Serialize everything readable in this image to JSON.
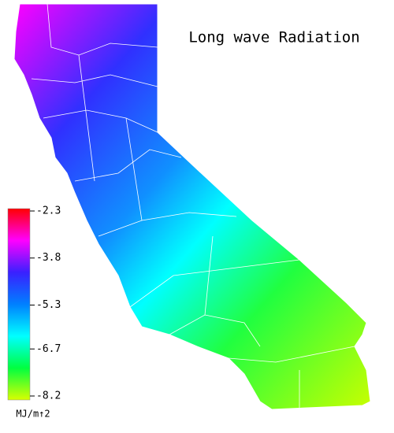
{
  "title": "Long wave Radiation",
  "colorbar": {
    "ticks": [
      -2.3,
      -3.8,
      -5.3,
      -6.7,
      -8.2
    ],
    "unit": "MJ/m↑2",
    "colors": [
      "#ff0000",
      "#ff00ff",
      "#3a20ff",
      "#0080ff",
      "#00ffff",
      "#00ff40",
      "#d8ff00"
    ]
  }
}
